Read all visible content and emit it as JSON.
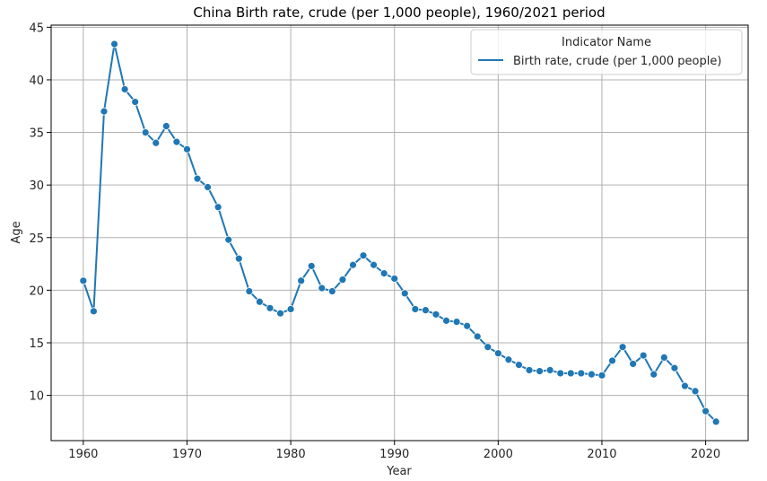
{
  "chart_data": {
    "type": "line",
    "title": "China Birth rate, crude (per 1,000 people), 1960/2021 period",
    "xlabel": "Year",
    "ylabel": "Age",
    "xlim": [
      1956.9,
      2024.1
    ],
    "ylim": [
      5.7,
      45.2
    ],
    "xticks": [
      1960,
      1970,
      1980,
      1990,
      2000,
      2010,
      2020
    ],
    "yticks": [
      10,
      15,
      20,
      25,
      30,
      35,
      40,
      45
    ],
    "grid": true,
    "legend": {
      "title": "Indicator Name",
      "placement": "top-right"
    },
    "color": "#1f77b4",
    "series": [
      {
        "name": "Birth rate, crude (per 1,000 people)",
        "x": [
          1960,
          1961,
          1962,
          1963,
          1964,
          1965,
          1966,
          1967,
          1968,
          1969,
          1970,
          1971,
          1972,
          1973,
          1974,
          1975,
          1976,
          1977,
          1978,
          1979,
          1980,
          1981,
          1982,
          1983,
          1984,
          1985,
          1986,
          1987,
          1988,
          1989,
          1990,
          1991,
          1992,
          1993,
          1994,
          1995,
          1996,
          1997,
          1998,
          1999,
          2000,
          2001,
          2002,
          2003,
          2004,
          2005,
          2006,
          2007,
          2008,
          2009,
          2010,
          2011,
          2012,
          2013,
          2014,
          2015,
          2016,
          2017,
          2018,
          2019,
          2020,
          2021
        ],
        "y": [
          20.9,
          18.0,
          37.0,
          43.4,
          39.1,
          37.9,
          35.0,
          34.0,
          35.6,
          34.1,
          33.4,
          30.6,
          29.8,
          27.9,
          24.8,
          23.0,
          19.9,
          18.9,
          18.3,
          17.8,
          18.2,
          20.9,
          22.3,
          20.2,
          19.9,
          21.0,
          22.4,
          23.3,
          22.4,
          21.6,
          21.1,
          19.7,
          18.2,
          18.1,
          17.7,
          17.1,
          17.0,
          16.6,
          15.6,
          14.6,
          14.0,
          13.4,
          12.9,
          12.4,
          12.3,
          12.4,
          12.1,
          12.1,
          12.1,
          12.0,
          11.9,
          13.3,
          14.6,
          13.0,
          13.8,
          12.0,
          13.6,
          12.6,
          10.9,
          10.4,
          8.5,
          7.5
        ]
      }
    ]
  }
}
